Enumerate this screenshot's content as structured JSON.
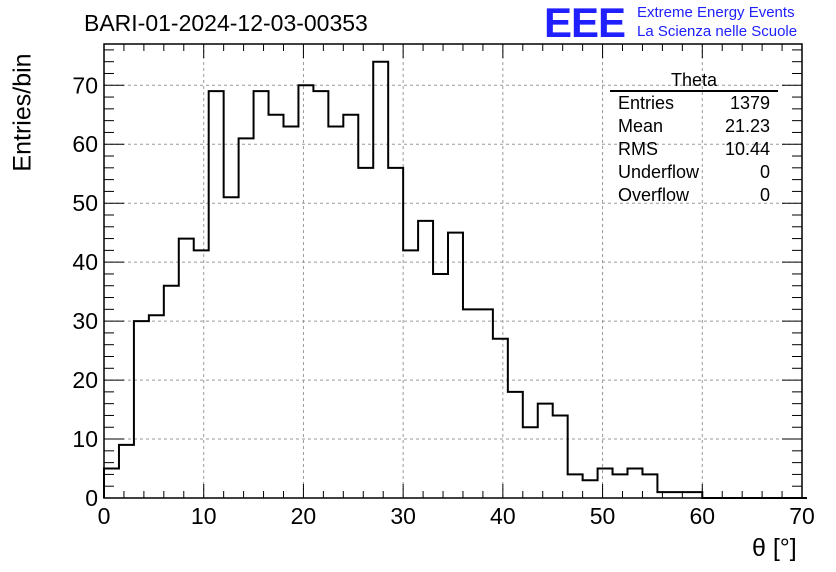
{
  "header": {
    "title": "BARI-01-2024-12-03-00353",
    "logo": "EEE",
    "logo_line1": "Extreme Energy Events",
    "logo_line2": "La Scienza nelle Scuole"
  },
  "stats_box": {
    "name": "Theta",
    "rows": [
      {
        "label": "Entries",
        "value": "1379"
      },
      {
        "label": "Mean",
        "value": "21.23"
      },
      {
        "label": "RMS",
        "value": "10.44"
      },
      {
        "label": "Underflow",
        "value": "0"
      },
      {
        "label": "Overflow",
        "value": "0"
      }
    ]
  },
  "chart_data": {
    "type": "histogram",
    "title": "BARI-01-2024-12-03-00353",
    "xlabel": "θ [°]",
    "ylabel": "Entries/bin",
    "xlim": [
      0,
      70
    ],
    "ylim": [
      0,
      77
    ],
    "bin_width": 1.5,
    "xticks": [
      0,
      10,
      20,
      30,
      40,
      50,
      60,
      70
    ],
    "yticks": [
      0,
      10,
      20,
      30,
      40,
      50,
      60,
      70
    ],
    "grid": true,
    "bin_edges_start": 0,
    "values": [
      5,
      9,
      30,
      31,
      36,
      44,
      42,
      69,
      51,
      61,
      69,
      65,
      63,
      70,
      69,
      63,
      65,
      56,
      74,
      56,
      42,
      47,
      38,
      45,
      32,
      32,
      27,
      18,
      12,
      16,
      14,
      4,
      3,
      5,
      4,
      5,
      4,
      1,
      1,
      1,
      0,
      0,
      0,
      0,
      0,
      0,
      0
    ]
  }
}
